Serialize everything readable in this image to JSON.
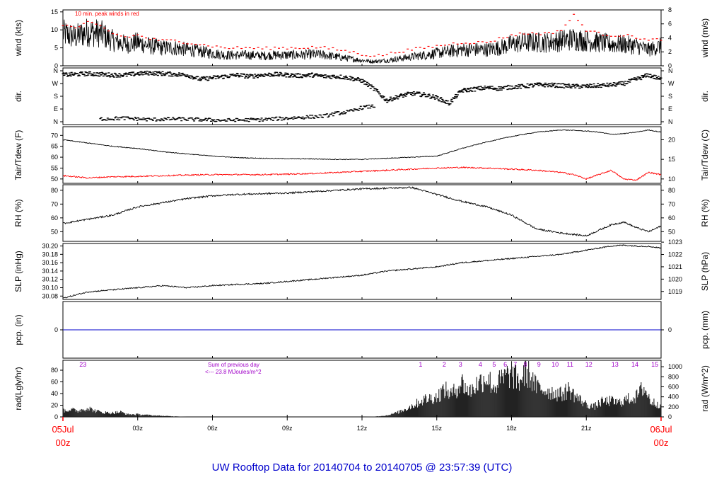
{
  "title": "UW Rooftop Data for 20140704  to  20140705 @ 23:57:39  (UTC)",
  "colors": {
    "frame": "#000000",
    "air_temp": "#000000",
    "dew_point": "#ff0000",
    "peak_wind": "#ff0000",
    "precip": "#0000cc",
    "annotation": "#a000c8",
    "title": "#0000cc",
    "date_labels": "#ff0000"
  },
  "chart_data": [
    {
      "type": "line",
      "name": "wind",
      "annotation": "10 min. peak winds in red",
      "ylabel_left": "wind (kts)",
      "ylabel_right": "wind (m/s)",
      "ylim": [
        0,
        15.55
      ],
      "yticks_left": [
        0,
        5,
        10,
        15
      ],
      "yticks_right": [
        0,
        2,
        4,
        6,
        8
      ],
      "right_scale": 0.5144,
      "x": [
        0,
        0.5,
        1,
        1.5,
        2,
        2.5,
        3,
        3.5,
        4,
        4.5,
        5,
        5.5,
        6,
        6.5,
        7,
        7.5,
        8,
        8.5,
        9,
        9.5,
        10,
        10.5,
        11,
        11.5,
        12,
        12.5,
        13,
        13.5,
        14,
        14.5,
        15,
        15.5,
        16,
        16.5,
        17,
        17.5,
        18,
        18.5,
        19,
        19.5,
        20,
        20.5,
        21,
        21.5,
        22,
        22.5,
        23,
        23.5,
        24
      ],
      "y": [
        9,
        8,
        9.5,
        9,
        7,
        6,
        6.5,
        5.5,
        5,
        5,
        4.5,
        4,
        3.5,
        3,
        3,
        3,
        2.8,
        3,
        3,
        3,
        3.2,
        3,
        2.5,
        2,
        1.5,
        1.2,
        1.5,
        2,
        2.5,
        3,
        3.5,
        4,
        4.5,
        4.5,
        4.5,
        5,
        6,
        6.5,
        6.5,
        6.5,
        7,
        7.5,
        7,
        6.5,
        6,
        6,
        5.5,
        4.5,
        5.5
      ],
      "peak_winds": [
        11.5,
        10.5,
        12,
        11,
        9,
        8,
        8.5,
        7.5,
        7,
        7,
        6.5,
        6,
        5.5,
        5,
        5,
        5,
        4.8,
        5,
        5,
        5,
        5.2,
        5,
        4.5,
        4,
        3.2,
        2.8,
        3.2,
        4,
        4.5,
        5,
        5.5,
        6,
        6.5,
        6.5,
        6.5,
        7.5,
        8.5,
        9,
        9,
        9,
        10,
        14,
        10,
        9,
        8.5,
        8.5,
        8,
        7,
        7.5
      ]
    },
    {
      "type": "scatter",
      "name": "dir.",
      "ylabel_left": "dir.",
      "ylabel_right": "dir.",
      "yticks_labels": [
        "N",
        "E",
        "S",
        "W",
        "N"
      ],
      "ylim": [
        0,
        360
      ],
      "x": [
        0,
        0.5,
        1,
        1.5,
        2,
        2.5,
        3,
        3.5,
        4,
        4.5,
        5,
        5.5,
        6,
        6.5,
        7,
        7.5,
        8,
        8.5,
        9,
        9.5,
        10,
        10.5,
        11,
        11.5,
        12,
        12.5,
        13,
        13.5,
        14,
        14.5,
        15,
        15.5,
        16,
        16.5,
        17,
        17.5,
        18,
        18.5,
        19,
        19.5,
        20,
        20.5,
        21,
        21.5,
        22,
        22.5,
        23,
        23.5,
        24
      ],
      "y": [
        330,
        335,
        340,
        335,
        330,
        330,
        340,
        345,
        340,
        335,
        330,
        300,
        310,
        320,
        330,
        320,
        330,
        335,
        330,
        325,
        330,
        320,
        320,
        310,
        290,
        230,
        150,
        180,
        200,
        190,
        170,
        130,
        220,
        230,
        240,
        235,
        245,
        250,
        260,
        260,
        255,
        250,
        250,
        255,
        260,
        270,
        300,
        330,
        300
      ],
      "secondary_x": [
        1.5,
        2.5,
        3.5,
        4.5,
        6.5,
        8,
        9,
        9.5,
        10.5,
        11,
        11.5,
        12,
        12.5
      ],
      "secondary_y": [
        20,
        25,
        15,
        20,
        10,
        15,
        25,
        30,
        40,
        60,
        70,
        100,
        110
      ]
    },
    {
      "type": "line",
      "name": "Tair/Tdew",
      "ylabel_left": "Tair/Tdew (F)",
      "ylabel_right": "Tair/Tdew (C)",
      "ylim": [
        48,
        74
      ],
      "yticks_left": [
        50,
        55,
        60,
        65,
        70
      ],
      "yticks_right": [
        10,
        15,
        20
      ],
      "x": [
        0,
        1,
        2,
        3,
        4,
        5,
        6,
        7,
        8,
        9,
        10,
        11,
        12,
        13,
        14,
        15,
        16,
        17,
        18,
        19,
        20,
        20.5,
        21,
        21.5,
        22,
        22.5,
        23,
        23.5,
        24
      ],
      "series": [
        {
          "label": "Tair",
          "values": [
            68,
            66.5,
            65,
            64,
            62.5,
            61.5,
            60.5,
            59.8,
            59.5,
            59.3,
            59.2,
            59,
            59,
            59.5,
            60,
            60.5,
            64,
            67,
            69.5,
            71.5,
            72.5,
            72.3,
            72,
            71.5,
            70.5,
            70.8,
            71.5,
            72.5,
            71.5
          ]
        },
        {
          "label": "Tdew",
          "values": [
            51.5,
            50.5,
            51,
            51.2,
            51.5,
            51.8,
            52,
            52,
            52,
            52.2,
            52.5,
            53,
            53.5,
            54,
            54.5,
            55,
            55.3,
            55,
            54.5,
            54,
            53,
            52,
            50,
            52,
            54,
            50,
            49.5,
            53,
            52
          ]
        }
      ]
    },
    {
      "type": "line",
      "name": "RH",
      "ylabel_left": "RH (%)",
      "ylabel_right": "RH (%)",
      "ylim": [
        43,
        84
      ],
      "yticks_left": [
        50,
        60,
        70,
        80
      ],
      "yticks_right": [
        50,
        60,
        70,
        80
      ],
      "x": [
        0,
        1,
        2,
        3,
        4,
        5,
        6,
        7,
        8,
        9,
        10,
        11,
        12,
        13,
        14,
        15,
        16,
        17,
        18,
        19,
        20,
        21,
        21.5,
        22,
        22.5,
        23,
        23.5,
        24
      ],
      "y": [
        56,
        59,
        62,
        68,
        71,
        74,
        76,
        77,
        77.5,
        78,
        79,
        80,
        81,
        81.5,
        82,
        77,
        72,
        68,
        62,
        52,
        49,
        47,
        51,
        55,
        57,
        53,
        50,
        54
      ]
    },
    {
      "type": "line",
      "name": "SLP",
      "ylabel_left": "SLP (inHg)",
      "ylabel_right": "SLP (hPa)",
      "ylim": [
        30.072,
        30.206
      ],
      "yticks_left": [
        30.08,
        30.1,
        30.12,
        30.14,
        30.16,
        30.18,
        30.2
      ],
      "ytick_labels_left": [
        "30.08",
        "30.10",
        "30.12",
        "30.14",
        "30.16",
        "30.18",
        "30.20"
      ],
      "yticks_right": [
        1019,
        1020,
        1021,
        1022,
        1023
      ],
      "x": [
        0,
        1,
        2,
        3,
        4,
        5,
        6,
        7,
        8,
        9,
        10,
        11,
        12,
        13,
        14,
        15,
        16,
        17,
        18,
        19,
        20,
        21,
        22,
        22.5,
        23,
        23.5,
        24
      ],
      "y": [
        30.075,
        30.09,
        30.095,
        30.1,
        30.105,
        30.1,
        30.105,
        30.108,
        30.11,
        30.115,
        30.12,
        30.125,
        30.13,
        30.14,
        30.145,
        30.15,
        30.16,
        30.165,
        30.17,
        30.175,
        30.18,
        30.19,
        30.2,
        30.202,
        30.2,
        30.199,
        30.195
      ]
    },
    {
      "type": "line",
      "name": "pcp.",
      "ylabel_left": "pcp. (in)",
      "ylabel_right": "pcp. (mm)",
      "ylim": [
        -1,
        1
      ],
      "yticks_left": [
        0
      ],
      "yticks_right": [
        0
      ],
      "x": [
        0,
        24
      ],
      "y": [
        0,
        0
      ]
    },
    {
      "type": "area",
      "name": "rad",
      "ylabel_left": "rad(Lgly/hr)",
      "ylabel_right": "rad (W/m^2)",
      "ylim": [
        0,
        97
      ],
      "yticks_left": [
        0,
        20,
        40,
        60,
        80
      ],
      "yticks_right": [
        0,
        200,
        400,
        600,
        800,
        1000
      ],
      "annotation_prev_day": "Sum of previous day",
      "annotation_total": "<--- 23.8 MJoules/m^2",
      "hour_labels": [
        "23",
        "1",
        "2",
        "3",
        "4",
        "5",
        "6",
        "7",
        "8",
        "9",
        "10",
        "11",
        "12",
        "13",
        "14",
        "15"
      ],
      "hour_label_x": [
        0.8,
        14.35,
        15.3,
        15.95,
        16.75,
        17.3,
        17.75,
        18.15,
        18.55,
        19.1,
        19.75,
        20.35,
        21.1,
        22.15,
        22.95,
        23.75
      ],
      "x": [
        0,
        0.3,
        0.6,
        1,
        1.3,
        1.6,
        2,
        2.3,
        2.6,
        3,
        3.3,
        3.6,
        4,
        4.5,
        5,
        6,
        8,
        10,
        12,
        12.5,
        13,
        13.5,
        14,
        14.5,
        15,
        15.3,
        15.6,
        16,
        16.3,
        16.6,
        17,
        17.3,
        17.6,
        18,
        18.3,
        18.6,
        19,
        19.3,
        19.6,
        20,
        20.3,
        20.6,
        21,
        21.3,
        21.6,
        22,
        22.3,
        22.6,
        23,
        23.3,
        23.6,
        24
      ],
      "values": [
        12,
        15,
        12,
        18,
        12,
        9,
        8,
        10,
        5,
        5,
        4,
        3,
        2,
        1,
        0,
        0,
        0,
        0,
        0,
        0.5,
        3,
        10,
        22,
        35,
        40,
        55,
        45,
        70,
        50,
        65,
        80,
        60,
        75,
        88,
        70,
        92,
        60,
        55,
        50,
        45,
        55,
        40,
        25,
        20,
        30,
        32,
        28,
        35,
        40,
        60,
        30,
        25
      ]
    }
  ],
  "x_axis": {
    "ticks": [
      {
        "hour": 3,
        "label": "03z"
      },
      {
        "hour": 6,
        "label": "06z"
      },
      {
        "hour": 9,
        "label": "09z"
      },
      {
        "hour": 12,
        "label": "12z"
      },
      {
        "hour": 15,
        "label": "15z"
      },
      {
        "hour": 18,
        "label": "18z"
      },
      {
        "hour": 21,
        "label": "21z"
      }
    ],
    "start_date": "05Jul",
    "start_time": "00z",
    "end_date": "06Jul",
    "end_time": "00z"
  }
}
